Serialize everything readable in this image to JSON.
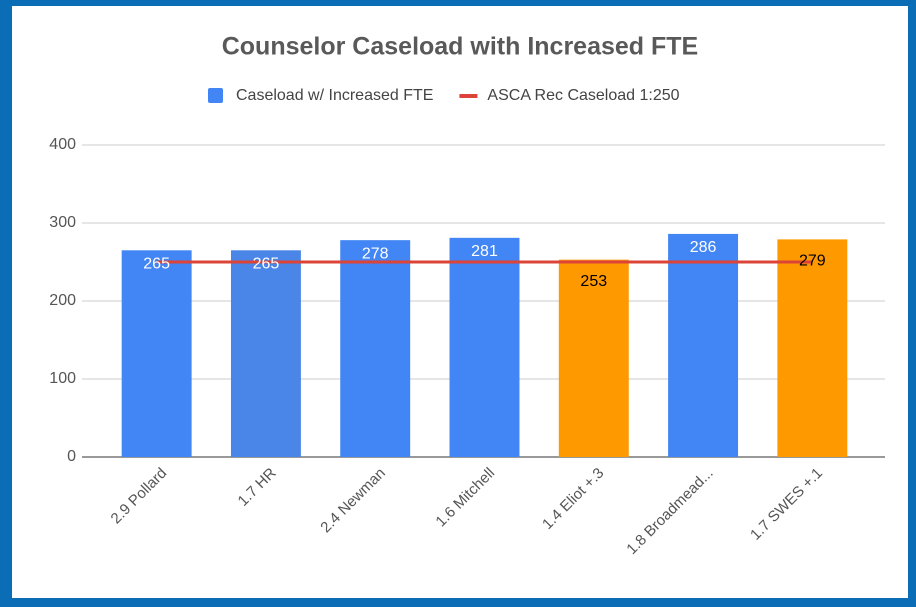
{
  "chart_data": {
    "type": "bar",
    "title": "Counselor Caseload with Increased FTE",
    "categories": [
      "2.9 Pollard",
      "1.7 HR",
      "2.4 Newman",
      "1.6 Mitchell",
      "1.4 Eliot +.3",
      "1.8 Broadmead...",
      "1.7 SWES +.1"
    ],
    "series": [
      {
        "name": "Caseload w/ Increased FTE",
        "type": "bar",
        "color": "#4285f4",
        "colors": [
          "#4285f4",
          "#4a86e8",
          "#4285f4",
          "#4285f4",
          "#ff9900",
          "#4285f4",
          "#ff9900"
        ],
        "label_colors": [
          "#ffffff",
          "#ffffff",
          "#ffffff",
          "#ffffff",
          "#000000",
          "#ffffff",
          "#000000"
        ],
        "values": [
          265,
          265,
          278,
          281,
          253,
          286,
          279
        ]
      },
      {
        "name": "ASCA Rec Caseload 1:250",
        "type": "line",
        "color": "#db4437",
        "values": [
          250,
          250,
          250,
          250,
          250,
          250,
          250
        ]
      }
    ],
    "ylim": [
      0,
      400
    ],
    "yticks": [
      0,
      100,
      200,
      300,
      400
    ],
    "grid": true,
    "legend": "top"
  }
}
